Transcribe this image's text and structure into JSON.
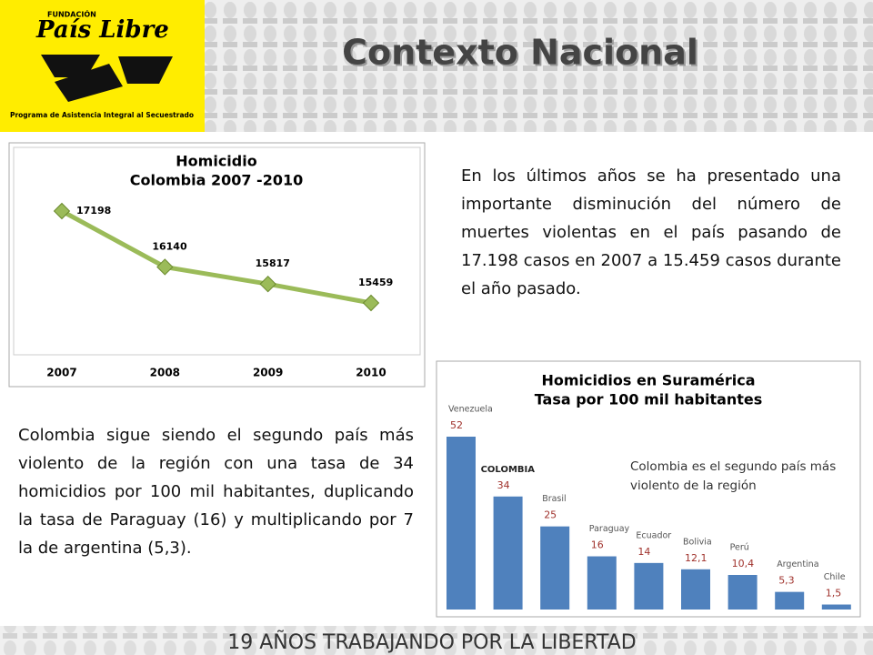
{
  "logo": {
    "foundation": "FUNDACIÓN",
    "name": "País Libre",
    "program": "Programa de Asistencia Integral al Secuestrado"
  },
  "title": "Contexto Nacional",
  "paragraphs": [
    "En los últimos años se ha presentado una importante disminución del número de muertes violentas en el país pasando de 17.198 casos en 2007 a 15.459 casos durante el año pasado.",
    "Colombia sigue siendo el segundo país más violento de la región con una tasa de 34 homicidios por 100 mil habitantes, duplicando la tasa de Paraguay (16) y multiplicando por 7 la de argentina (5,3)."
  ],
  "footer": "19 AÑOS TRABAJANDO POR LA LIBERTAD",
  "chart_data": [
    {
      "type": "line",
      "title": "Homicidio",
      "subtitle": "Colombia 2007 -2010",
      "categories": [
        "2007",
        "2008",
        "2009",
        "2010"
      ],
      "values": [
        17198,
        16140,
        15817,
        15459
      ],
      "color": "#9bbb59"
    },
    {
      "type": "bar",
      "title": "Homicidios en Suramérica",
      "subtitle": "Tasa por 100 mil habitantes",
      "categories": [
        "Venezuela",
        "COLOMBIA",
        "Brasil",
        "Paraguay",
        "Ecuador",
        "Bolivia",
        "Perú",
        "Argentina",
        "Chile"
      ],
      "values": [
        52,
        34,
        25,
        16,
        14,
        12.1,
        10.4,
        5.3,
        1.5
      ],
      "value_labels": [
        "52",
        "34",
        "25",
        "16",
        "14",
        "12,1",
        "10,4",
        "5,3",
        "1,5"
      ],
      "color": "#4f81bd",
      "annotation": "Colombia es el segundo país más violento de la región"
    }
  ]
}
